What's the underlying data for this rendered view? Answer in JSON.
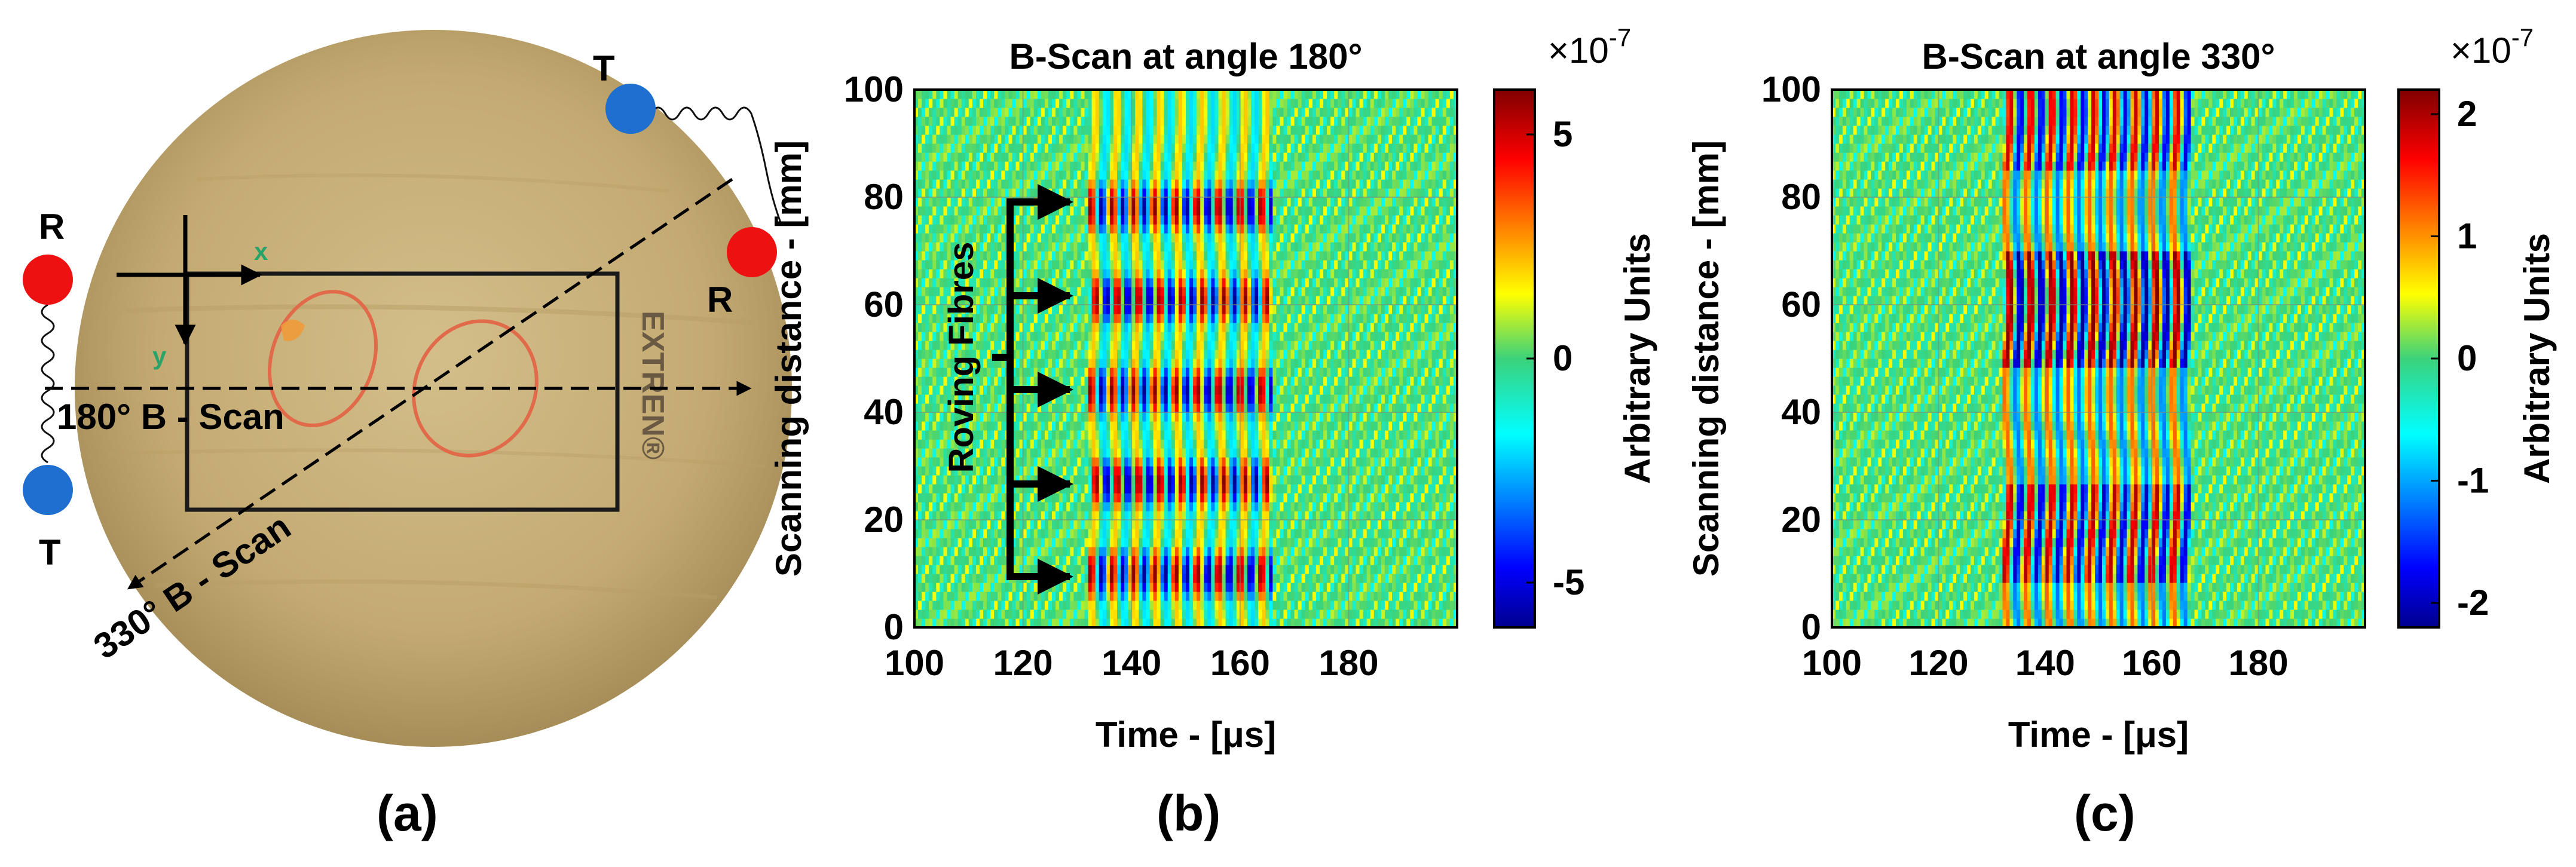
{
  "panel_a": {
    "caption": "(a)",
    "markers": [
      {
        "label": "R",
        "color": "#ee1111"
      },
      {
        "label": "T",
        "color": "#1e6fd0"
      },
      {
        "label": "T",
        "color": "#1e6fd0"
      },
      {
        "label": "R",
        "color": "#ee1111"
      }
    ],
    "scan_180_label": "180° B - Scan",
    "scan_330_label": "330° B - Scan",
    "axis_x_label": "x",
    "axis_y_label": "y",
    "brand_text": "EXTREN®"
  },
  "panel_b": {
    "caption": "(b)",
    "annotation": "Roving Fibres",
    "colorbar": {
      "exponent": "×10",
      "exponent_power": "-7",
      "label": "Arbitrary Units",
      "ticks": [
        "5",
        "0",
        "-5"
      ],
      "range": [
        -6,
        6
      ]
    }
  },
  "panel_c": {
    "caption": "(c)",
    "colorbar": {
      "exponent": "×10",
      "exponent_power": "-7",
      "label": "Arbitrary Units",
      "ticks": [
        "2",
        "1",
        "0",
        "-1",
        "-2"
      ],
      "range": [
        -2.2,
        2.2
      ]
    }
  },
  "chart_data": [
    {
      "type": "heatmap",
      "title": "B-Scan at angle 180°",
      "xlabel": "Time - [μs]",
      "ylabel": "Scanning distance - [mm]",
      "xlim": [
        100,
        200
      ],
      "ylim": [
        0,
        100
      ],
      "xticks": [
        "100",
        "120",
        "140",
        "160",
        "180"
      ],
      "yticks": [
        "0",
        "20",
        "40",
        "60",
        "80",
        "100"
      ],
      "grid": true,
      "signal_window_us": [
        132,
        166
      ],
      "roving_fibre_distances_mm": [
        10,
        27,
        44,
        61,
        78
      ]
    },
    {
      "type": "heatmap",
      "title": "B-Scan at angle 330°",
      "xlabel": "Time - [μs]",
      "ylabel": "Scanning distance - [mm]",
      "xlim": [
        100,
        200
      ],
      "ylim": [
        0,
        100
      ],
      "xticks": [
        "100",
        "120",
        "140",
        "160",
        "180"
      ],
      "yticks": [
        "0",
        "20",
        "40",
        "60",
        "80",
        "100"
      ],
      "grid": true,
      "signal_window_us": [
        132,
        167
      ]
    }
  ]
}
